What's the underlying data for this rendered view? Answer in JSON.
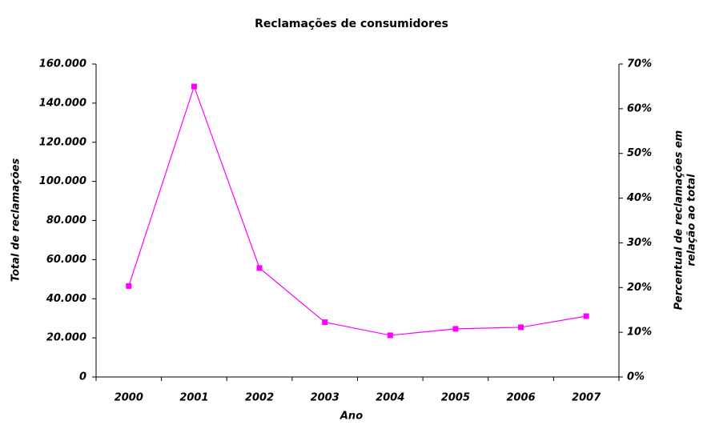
{
  "chart_data": {
    "type": "line",
    "title": "Reclamações de consumidores",
    "xlabel": "Ano",
    "ylabel": "Total de reclamações",
    "y2label": [
      "Percentual de reclamações em",
      "relação ao total"
    ],
    "categories": [
      "2000",
      "2001",
      "2002",
      "2003",
      "2004",
      "2005",
      "2006",
      "2007"
    ],
    "series": [
      {
        "color": "#ff00ff",
        "values": [
          46500,
          148500,
          55700,
          28000,
          21300,
          24600,
          25400,
          31100
        ]
      }
    ],
    "ylim": [
      0,
      160000
    ],
    "yticks": [
      0,
      {
        "value": 20000,
        "label": "20.000"
      },
      {
        "value": 40000,
        "label": "40.000"
      },
      {
        "value": 60000,
        "label": "60.000"
      },
      {
        "value": 80000,
        "label": "80.000"
      },
      {
        "value": 100000,
        "label": "100.000"
      },
      {
        "value": 120000,
        "label": "120.000"
      },
      {
        "value": 140000,
        "label": "140.000"
      },
      {
        "value": 160000,
        "label": "160.000"
      }
    ],
    "y2lim": [
      0,
      70
    ],
    "y2ticks": [
      {
        "value": 0,
        "label": "0%"
      },
      {
        "value": 10,
        "label": "10%"
      },
      {
        "value": 20,
        "label": "20%"
      },
      {
        "value": 30,
        "label": "30%"
      },
      {
        "value": 40,
        "label": "40%"
      },
      {
        "value": 50,
        "label": "50%"
      },
      {
        "value": 60,
        "label": "60%"
      },
      {
        "value": 70,
        "label": "70%"
      }
    ],
    "grid": false
  }
}
